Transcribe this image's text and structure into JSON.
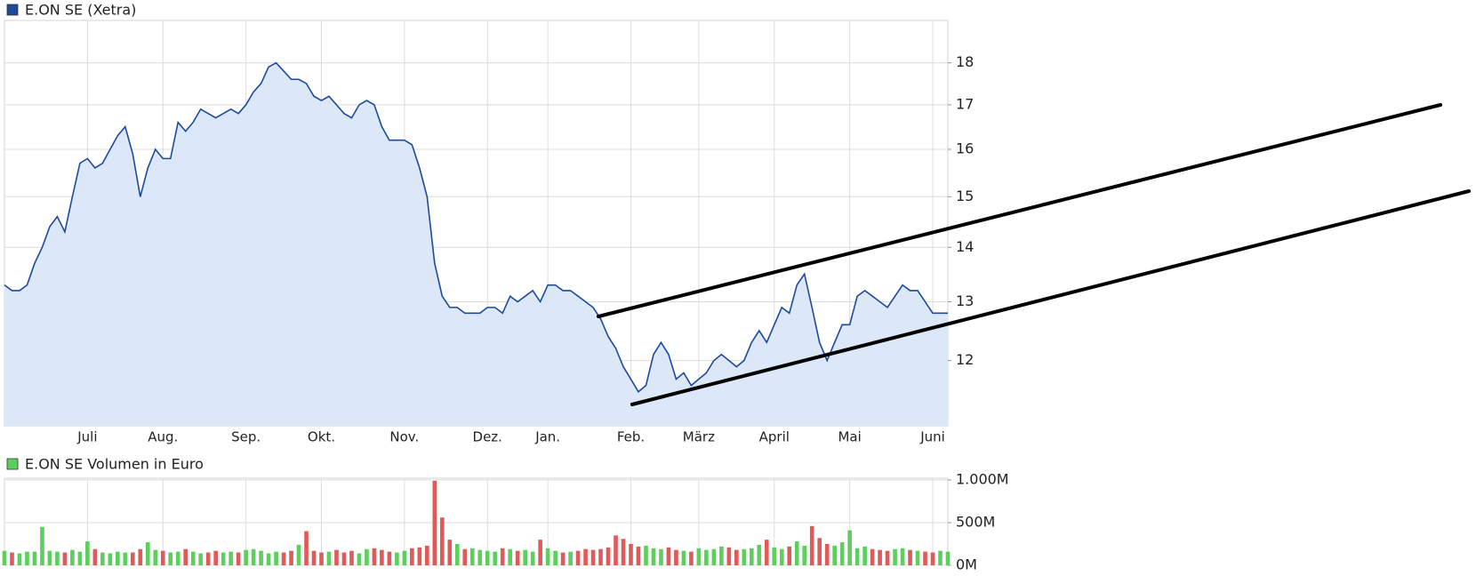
{
  "chart_data": [
    {
      "type": "area",
      "legend": "top-left",
      "grid": true,
      "log_scale": true,
      "categories": [
        null,
        null,
        null,
        null,
        null,
        null,
        null,
        null,
        null,
        null,
        null,
        "Juli",
        null,
        null,
        null,
        null,
        null,
        null,
        null,
        null,
        null,
        "Aug.",
        null,
        null,
        null,
        null,
        null,
        null,
        null,
        null,
        null,
        null,
        "Sep.",
        null,
        null,
        null,
        null,
        null,
        null,
        null,
        null,
        null,
        "Okt.",
        null,
        null,
        null,
        null,
        null,
        null,
        null,
        null,
        null,
        null,
        "Nov.",
        null,
        null,
        null,
        null,
        null,
        null,
        null,
        null,
        null,
        null,
        "Dez.",
        null,
        null,
        null,
        null,
        null,
        null,
        null,
        "Jan.",
        null,
        null,
        null,
        null,
        null,
        null,
        null,
        null,
        null,
        null,
        "Feb.",
        null,
        null,
        null,
        null,
        null,
        null,
        null,
        null,
        "März",
        null,
        null,
        null,
        null,
        null,
        null,
        null,
        null,
        null,
        "April",
        null,
        null,
        null,
        null,
        null,
        null,
        null,
        null,
        null,
        "Mai",
        null,
        null,
        null,
        null,
        null,
        null,
        null,
        null,
        null,
        null,
        "Juni",
        null,
        null
      ],
      "series": [
        {
          "name": "E.ON SE (Xetra)",
          "color": "#1c4a9c",
          "fill_color": "#dce7f8",
          "values": [
            13.3,
            13.2,
            13.2,
            13.3,
            13.7,
            14.0,
            14.4,
            14.6,
            14.3,
            15.0,
            15.7,
            15.8,
            15.6,
            15.7,
            16.0,
            16.3,
            16.5,
            15.9,
            15.0,
            15.6,
            16.0,
            15.8,
            15.8,
            16.6,
            16.4,
            16.6,
            16.9,
            16.8,
            16.7,
            16.8,
            16.9,
            16.8,
            17.0,
            17.3,
            17.5,
            17.9,
            18.0,
            17.8,
            17.6,
            17.6,
            17.5,
            17.2,
            17.1,
            17.2,
            17.0,
            16.8,
            16.7,
            17.0,
            17.1,
            17.0,
            16.5,
            16.2,
            16.2,
            16.2,
            16.1,
            15.6,
            15.0,
            13.7,
            13.1,
            12.9,
            12.9,
            12.8,
            12.8,
            12.8,
            12.9,
            12.9,
            12.8,
            13.1,
            13.0,
            13.1,
            13.2,
            13.0,
            13.3,
            13.3,
            13.2,
            13.2,
            13.1,
            13.0,
            12.9,
            12.7,
            12.4,
            12.2,
            11.9,
            11.7,
            11.5,
            11.6,
            12.1,
            12.3,
            12.1,
            11.7,
            11.8,
            11.6,
            11.7,
            11.8,
            12.0,
            12.1,
            12.0,
            11.9,
            12.0,
            12.3,
            12.5,
            12.3,
            12.6,
            12.9,
            12.8,
            13.3,
            13.5,
            12.9,
            12.3,
            12.0,
            12.3,
            12.6,
            12.6,
            13.1,
            13.2,
            13.1,
            13.0,
            12.9,
            13.1,
            13.3,
            13.2,
            13.2,
            13.0,
            12.8,
            12.8,
            12.8
          ]
        }
      ],
      "ylim": [
        10.98,
        19.07
      ],
      "yticks": [
        12,
        13,
        14,
        15,
        16,
        17,
        18
      ]
    },
    {
      "type": "bar",
      "legend": "top-left",
      "grid": true,
      "series": [
        {
          "name": "E.ON SE Volumen in Euro",
          "color": "#5ccf5c",
          "down_color": "#e05a5a",
          "values": [
            170,
            150,
            140,
            160,
            160,
            450,
            170,
            160,
            150,
            180,
            160,
            280,
            190,
            150,
            140,
            160,
            150,
            150,
            190,
            270,
            180,
            170,
            150,
            160,
            190,
            160,
            140,
            150,
            170,
            150,
            160,
            150,
            180,
            190,
            170,
            140,
            160,
            150,
            170,
            240,
            400,
            170,
            150,
            160,
            180,
            150,
            170,
            140,
            190,
            200,
            180,
            160,
            150,
            170,
            200,
            210,
            230,
            990,
            560,
            300,
            250,
            190,
            200,
            180,
            170,
            160,
            200,
            190,
            170,
            180,
            160,
            300,
            200,
            170,
            150,
            160,
            170,
            190,
            180,
            190,
            210,
            350,
            310,
            250,
            220,
            230,
            200,
            190,
            210,
            180,
            170,
            160,
            200,
            180,
            190,
            220,
            210,
            180,
            190,
            200,
            240,
            300,
            210,
            190,
            220,
            280,
            230,
            460,
            320,
            250,
            230,
            270,
            410,
            200,
            220,
            190,
            180,
            170,
            190,
            200,
            180,
            170,
            160,
            150,
            170,
            160
          ]
        }
      ],
      "ylim": [
        0,
        1020
      ],
      "yticks": [
        {
          "value": 0,
          "label": "0M"
        },
        {
          "value": 500,
          "label": "500M"
        },
        {
          "value": 1000,
          "label": "1.000M"
        }
      ]
    }
  ]
}
